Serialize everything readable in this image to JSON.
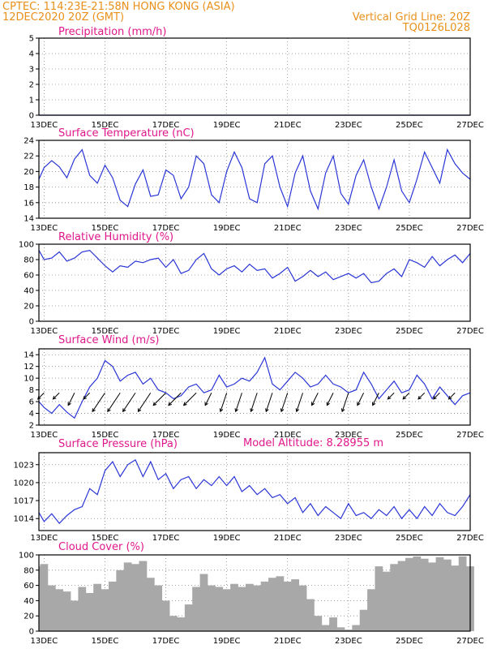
{
  "header": {
    "line1_left": "CPTEC:    114:23E-21:58N    HONG KONG (ASIA)",
    "line2_left": "12DEC2020  20Z  (GMT)",
    "line1_right": "Vertical Grid Line: 20Z",
    "line2_right": "TQ0126L028"
  },
  "model_altitude": "Model Altitude:  8.28955  m",
  "colors": {
    "header": "#e8901a",
    "title": "#e0178a",
    "line": "#2a36d6",
    "cloud": "#a8a8a8",
    "grid": "#888888"
  },
  "chart_data": [
    {
      "type": "line",
      "title": "Precipitation   (mm/h)",
      "x_labels": [
        "13DEC",
        "15DEC",
        "17DEC",
        "19DEC",
        "21DEC",
        "23DEC",
        "25DEC",
        "27DEC"
      ],
      "x_start": 12.83,
      "x_end": 27.0,
      "ylim": [
        0,
        5
      ],
      "yticks": [
        0,
        1,
        2,
        3,
        4,
        5
      ],
      "series": [
        {
          "x": [
            12.83,
            27.0
          ],
          "y": [
            0,
            0
          ]
        }
      ]
    },
    {
      "type": "line",
      "title": "Surface Temperature  (nC)",
      "x_labels": [
        "13DEC",
        "15DEC",
        "17DEC",
        "19DEC",
        "21DEC",
        "23DEC",
        "25DEC",
        "27DEC"
      ],
      "x_start": 12.83,
      "x_end": 27.0,
      "ylim": [
        14,
        24
      ],
      "yticks": [
        14,
        16,
        18,
        20,
        22,
        24
      ],
      "series": [
        {
          "x": [
            12.83,
            13.0,
            13.25,
            13.5,
            13.75,
            14.0,
            14.25,
            14.5,
            14.75,
            15.0,
            15.25,
            15.5,
            15.75,
            16.0,
            16.25,
            16.5,
            16.75,
            17.0,
            17.25,
            17.5,
            17.75,
            18.0,
            18.25,
            18.5,
            18.75,
            19.0,
            19.25,
            19.5,
            19.75,
            20.0,
            20.25,
            20.5,
            20.75,
            21.0,
            21.25,
            21.5,
            21.75,
            22.0,
            22.25,
            22.5,
            22.75,
            23.0,
            23.25,
            23.5,
            23.75,
            24.0,
            24.25,
            24.5,
            24.75,
            25.0,
            25.25,
            25.5,
            25.75,
            26.0,
            26.25,
            26.5,
            26.75,
            27.0
          ],
          "y": [
            19.0,
            20.5,
            21.4,
            20.6,
            19.2,
            21.6,
            22.8,
            19.5,
            18.5,
            20.8,
            19.2,
            16.3,
            15.5,
            18.4,
            20.2,
            16.8,
            17.0,
            20.2,
            19.5,
            16.5,
            18.0,
            22.0,
            21.0,
            17.0,
            16.0,
            20.0,
            22.5,
            20.5,
            16.5,
            16.0,
            21.0,
            22.0,
            18.0,
            15.5,
            19.8,
            22.0,
            17.5,
            15.2,
            19.8,
            22.0,
            17.2,
            15.8,
            19.5,
            21.5,
            18.0,
            15.2,
            18.0,
            21.5,
            17.5,
            16.0,
            19.0,
            22.5,
            20.5,
            18.5,
            22.8,
            21.0,
            19.8,
            19.0
          ]
        }
      ]
    },
    {
      "type": "line",
      "title": "Relative Humidity  (%)",
      "x_labels": [
        "13DEC",
        "15DEC",
        "17DEC",
        "19DEC",
        "21DEC",
        "23DEC",
        "25DEC",
        "27DEC"
      ],
      "x_start": 12.83,
      "x_end": 27.0,
      "ylim": [
        0,
        100
      ],
      "yticks": [
        0,
        20,
        40,
        60,
        80,
        100
      ],
      "series": [
        {
          "x": [
            12.83,
            13.0,
            13.25,
            13.5,
            13.75,
            14.0,
            14.25,
            14.5,
            14.75,
            15.0,
            15.25,
            15.5,
            15.75,
            16.0,
            16.25,
            16.5,
            16.75,
            17.0,
            17.25,
            17.5,
            17.75,
            18.0,
            18.25,
            18.5,
            18.75,
            19.0,
            19.25,
            19.5,
            19.75,
            20.0,
            20.25,
            20.5,
            20.75,
            21.0,
            21.25,
            21.5,
            21.75,
            22.0,
            22.25,
            22.5,
            22.75,
            23.0,
            23.25,
            23.5,
            23.75,
            24.0,
            24.25,
            24.5,
            24.75,
            25.0,
            25.25,
            25.5,
            25.75,
            26.0,
            26.25,
            26.5,
            26.75,
            27.0
          ],
          "y": [
            92,
            80,
            82,
            90,
            78,
            82,
            90,
            92,
            82,
            72,
            64,
            72,
            70,
            78,
            76,
            80,
            82,
            70,
            80,
            62,
            66,
            80,
            88,
            68,
            60,
            68,
            72,
            64,
            74,
            66,
            68,
            56,
            62,
            70,
            52,
            58,
            66,
            58,
            64,
            54,
            58,
            62,
            56,
            62,
            50,
            52,
            62,
            68,
            58,
            80,
            76,
            70,
            84,
            72,
            80,
            86,
            76,
            88
          ]
        }
      ]
    },
    {
      "type": "line",
      "title": "Surface Wind  (m/s)",
      "x_labels": [
        "13DEC",
        "15DEC",
        "17DEC",
        "19DEC",
        "21DEC",
        "23DEC",
        "25DEC",
        "27DEC"
      ],
      "x_start": 12.83,
      "x_end": 27.0,
      "ylim": [
        2,
        15
      ],
      "yticks": [
        2,
        4,
        6,
        8,
        10,
        12,
        14
      ],
      "series": [
        {
          "x": [
            12.83,
            13.0,
            13.25,
            13.5,
            13.75,
            14.0,
            14.25,
            14.5,
            14.75,
            15.0,
            15.25,
            15.5,
            15.75,
            16.0,
            16.25,
            16.5,
            16.75,
            17.0,
            17.25,
            17.5,
            17.75,
            18.0,
            18.25,
            18.5,
            18.75,
            19.0,
            19.25,
            19.5,
            19.75,
            20.0,
            20.25,
            20.5,
            20.75,
            21.0,
            21.25,
            21.5,
            21.75,
            22.0,
            22.25,
            22.5,
            22.75,
            23.0,
            23.25,
            23.5,
            23.75,
            24.0,
            24.25,
            24.5,
            24.75,
            25.0,
            25.25,
            25.5,
            25.75,
            26.0,
            26.25,
            26.5,
            26.75,
            27.0
          ],
          "y": [
            6.0,
            5.0,
            4.0,
            5.5,
            4.2,
            3.2,
            6.0,
            8.5,
            10.0,
            13.0,
            12.0,
            9.5,
            10.5,
            11.0,
            9.0,
            10.0,
            8.0,
            7.5,
            6.5,
            7.0,
            8.5,
            9.0,
            7.5,
            8.0,
            10.5,
            8.5,
            9.0,
            10.0,
            9.5,
            11.0,
            13.5,
            9.0,
            8.0,
            9.5,
            11.0,
            10.0,
            8.5,
            9.0,
            10.5,
            9.0,
            8.5,
            7.5,
            8.0,
            11.0,
            9.0,
            6.5,
            8.0,
            9.5,
            7.5,
            8.0,
            10.5,
            9.0,
            6.5,
            8.5,
            7.0,
            5.5,
            7.0,
            7.5
          ]
        }
      ],
      "wind_barbs": [
        {
          "x": 13.0,
          "dx": -1,
          "dy": 1
        },
        {
          "x": 13.5,
          "dx": -1,
          "dy": 1
        },
        {
          "x": 14.0,
          "dx": -1,
          "dy": 2
        },
        {
          "x": 14.5,
          "dx": -1,
          "dy": 1
        },
        {
          "x": 15.0,
          "dx": -2,
          "dy": 3
        },
        {
          "x": 15.5,
          "dx": -2,
          "dy": 3
        },
        {
          "x": 16.0,
          "dx": -2,
          "dy": 3
        },
        {
          "x": 16.5,
          "dx": -2,
          "dy": 3
        },
        {
          "x": 17.0,
          "dx": -2,
          "dy": 2
        },
        {
          "x": 17.5,
          "dx": -2,
          "dy": 2
        },
        {
          "x": 18.0,
          "dx": -2,
          "dy": 2
        },
        {
          "x": 18.5,
          "dx": -1,
          "dy": 2
        },
        {
          "x": 19.0,
          "dx": -1,
          "dy": 3
        },
        {
          "x": 19.5,
          "dx": -1,
          "dy": 3
        },
        {
          "x": 20.0,
          "dx": -1,
          "dy": 3
        },
        {
          "x": 20.5,
          "dx": -1,
          "dy": 3
        },
        {
          "x": 21.0,
          "dx": -1,
          "dy": 3
        },
        {
          "x": 21.5,
          "dx": -1,
          "dy": 3
        },
        {
          "x": 22.0,
          "dx": -1,
          "dy": 2
        },
        {
          "x": 22.5,
          "dx": -1,
          "dy": 2
        },
        {
          "x": 23.0,
          "dx": -1,
          "dy": 3
        },
        {
          "x": 23.5,
          "dx": -1,
          "dy": 2
        },
        {
          "x": 24.0,
          "dx": -1,
          "dy": 2
        },
        {
          "x": 24.5,
          "dx": -1,
          "dy": 1
        },
        {
          "x": 25.0,
          "dx": -1,
          "dy": 1
        },
        {
          "x": 25.5,
          "dx": -1,
          "dy": 1
        },
        {
          "x": 26.0,
          "dx": -1,
          "dy": 1
        },
        {
          "x": 26.5,
          "dx": -1,
          "dy": 1
        }
      ]
    },
    {
      "type": "line",
      "title": "Surface Pressure  (hPa)",
      "x_labels": [
        "13DEC",
        "15DEC",
        "17DEC",
        "19DEC",
        "21DEC",
        "23DEC",
        "25DEC",
        "27DEC"
      ],
      "x_start": 12.83,
      "x_end": 27.0,
      "ylim": [
        1012,
        1025
      ],
      "yticks": [
        1014,
        1017,
        1020,
        1023
      ],
      "series": [
        {
          "x": [
            12.83,
            13.0,
            13.25,
            13.5,
            13.75,
            14.0,
            14.25,
            14.5,
            14.75,
            15.0,
            15.25,
            15.5,
            15.75,
            16.0,
            16.25,
            16.5,
            16.75,
            17.0,
            17.25,
            17.5,
            17.75,
            18.0,
            18.25,
            18.5,
            18.75,
            19.0,
            19.25,
            19.5,
            19.75,
            20.0,
            20.25,
            20.5,
            20.75,
            21.0,
            21.25,
            21.5,
            21.75,
            22.0,
            22.25,
            22.5,
            22.75,
            23.0,
            23.25,
            23.5,
            23.75,
            24.0,
            24.25,
            24.5,
            24.75,
            25.0,
            25.25,
            25.5,
            25.75,
            26.0,
            26.25,
            26.5,
            26.75,
            27.0
          ],
          "y": [
            1015.0,
            1013.5,
            1014.8,
            1013.2,
            1014.5,
            1015.5,
            1016.0,
            1019.0,
            1018.0,
            1022.0,
            1023.5,
            1021.0,
            1023.0,
            1023.8,
            1021.0,
            1023.5,
            1020.5,
            1021.5,
            1019.0,
            1020.5,
            1021.0,
            1019.0,
            1020.5,
            1019.5,
            1021.0,
            1019.5,
            1021.0,
            1018.5,
            1019.5,
            1018.0,
            1019.0,
            1017.5,
            1018.0,
            1016.5,
            1017.5,
            1015.0,
            1016.5,
            1014.5,
            1016.0,
            1015.0,
            1014.0,
            1016.5,
            1014.5,
            1015.0,
            1014.0,
            1015.5,
            1014.5,
            1016.0,
            1014.0,
            1015.5,
            1014.0,
            1016.0,
            1014.5,
            1016.5,
            1015.0,
            1014.5,
            1016.0,
            1018.0
          ]
        }
      ]
    },
    {
      "type": "area",
      "title": "Cloud Cover  (%)",
      "x_labels": [
        "13DEC",
        "15DEC",
        "17DEC",
        "19DEC",
        "21DEC",
        "23DEC",
        "25DEC",
        "27DEC"
      ],
      "x_start": 12.83,
      "x_end": 27.0,
      "ylim": [
        0,
        100
      ],
      "yticks": [
        0,
        20,
        40,
        60,
        80,
        100
      ],
      "series": [
        {
          "x": [
            12.83,
            13.0,
            13.25,
            13.5,
            13.75,
            14.0,
            14.25,
            14.5,
            14.75,
            15.0,
            15.25,
            15.5,
            15.75,
            16.0,
            16.25,
            16.5,
            16.75,
            17.0,
            17.25,
            17.5,
            17.75,
            18.0,
            18.25,
            18.5,
            18.75,
            19.0,
            19.25,
            19.5,
            19.75,
            20.0,
            20.25,
            20.5,
            20.75,
            21.0,
            21.25,
            21.5,
            21.75,
            22.0,
            22.25,
            22.5,
            22.75,
            23.0,
            23.25,
            23.5,
            23.75,
            24.0,
            24.25,
            24.5,
            24.75,
            25.0,
            25.25,
            25.5,
            25.75,
            26.0,
            26.25,
            26.5,
            26.75,
            27.0
          ],
          "y": [
            85,
            88,
            60,
            55,
            52,
            40,
            58,
            50,
            62,
            55,
            65,
            80,
            90,
            88,
            92,
            70,
            60,
            40,
            20,
            18,
            35,
            58,
            75,
            60,
            58,
            55,
            62,
            58,
            62,
            60,
            65,
            70,
            72,
            65,
            68,
            60,
            42,
            20,
            8,
            18,
            5,
            2,
            8,
            28,
            55,
            85,
            78,
            88,
            92,
            96,
            98,
            95,
            90,
            97,
            94,
            86,
            98,
            85
          ]
        }
      ]
    }
  ]
}
